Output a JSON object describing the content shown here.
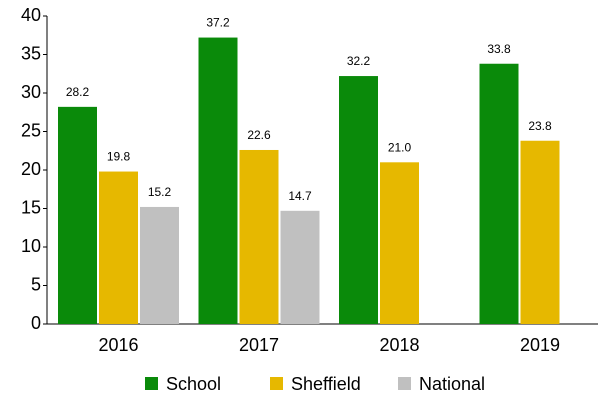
{
  "chart_data": {
    "type": "bar",
    "categories": [
      "2016",
      "2017",
      "2018",
      "2019"
    ],
    "series": [
      {
        "name": "School",
        "color": "#0a8a0a",
        "values": [
          28.2,
          37.2,
          32.2,
          33.8
        ]
      },
      {
        "name": "Sheffield",
        "color": "#e6b800",
        "values": [
          19.8,
          22.6,
          21,
          23.8
        ],
        "value_labels": [
          "19.8",
          "22.6",
          "21.0",
          "23.8"
        ]
      },
      {
        "name": "National",
        "color": "#c0c0c0",
        "values": [
          15.2,
          14.7,
          null,
          null
        ]
      }
    ],
    "ylim": [
      0,
      40
    ],
    "yticks": [
      0,
      5,
      10,
      15,
      20,
      25,
      30,
      35,
      40
    ],
    "legend": "bottom"
  }
}
